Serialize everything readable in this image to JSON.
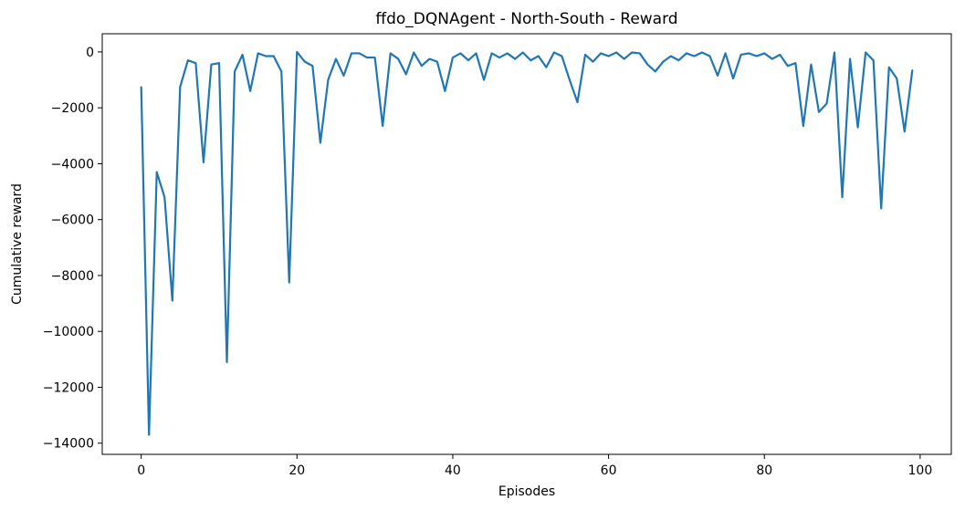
{
  "chart_data": {
    "type": "line",
    "title": "ffdo_DQNAgent - North-South - Reward",
    "xlabel": "Episodes",
    "ylabel": "Cumulative reward",
    "xlim": [
      -5,
      104
    ],
    "ylim": [
      -14400,
      650
    ],
    "xticks": [
      0,
      20,
      40,
      60,
      80,
      100
    ],
    "xtick_labels": [
      "0",
      "20",
      "40",
      "60",
      "80",
      "100"
    ],
    "yticks": [
      0,
      -2000,
      -4000,
      -6000,
      -8000,
      -10000,
      -12000,
      -14000
    ],
    "ytick_labels": [
      "0",
      "−2000",
      "−4000",
      "−6000",
      "−8000",
      "−10000",
      "−12000",
      "−14000"
    ],
    "grid": false,
    "line_color": "#1f77b4",
    "series": [
      {
        "x": [
          0,
          1,
          2,
          3,
          4,
          5,
          6,
          7,
          8,
          9,
          10,
          11,
          12,
          13,
          14,
          15,
          16,
          17,
          18,
          19,
          20,
          21,
          22,
          23,
          24,
          25,
          26,
          27,
          28,
          29,
          30,
          31,
          32,
          33,
          34,
          35,
          36,
          37,
          38,
          39,
          40,
          41,
          42,
          43,
          44,
          45,
          46,
          47,
          48,
          49,
          50,
          51,
          52,
          53,
          54,
          55,
          56,
          57,
          58,
          59,
          60,
          61,
          62,
          63,
          64,
          65,
          66,
          67,
          68,
          69,
          70,
          71,
          72,
          73,
          74,
          75,
          76,
          77,
          78,
          79,
          80,
          81,
          82,
          83,
          84,
          85,
          86,
          87,
          88,
          89,
          90,
          91,
          92,
          93,
          94,
          95,
          96,
          97,
          98,
          99
        ],
        "values": [
          -1250,
          -13700,
          -4300,
          -5200,
          -8900,
          -1250,
          -300,
          -400,
          -3950,
          -450,
          -400,
          -11100,
          -700,
          -100,
          -1400,
          -50,
          -150,
          -150,
          -700,
          -8250,
          0,
          -350,
          -500,
          -3250,
          -1000,
          -250,
          -850,
          -50,
          -50,
          -200,
          -200,
          -2650,
          -50,
          -250,
          -800,
          -20,
          -500,
          -250,
          -350,
          -1400,
          -200,
          -50,
          -300,
          -50,
          -1000,
          -50,
          -200,
          -50,
          -250,
          -20,
          -300,
          -150,
          -550,
          -20,
          -150,
          -1000,
          -1800,
          -100,
          -350,
          -50,
          -150,
          -20,
          -250,
          -20,
          -50,
          -450,
          -700,
          -350,
          -150,
          -300,
          -50,
          -150,
          -20,
          -150,
          -850,
          -50,
          -950,
          -100,
          -50,
          -150,
          -50,
          -250,
          -100,
          -500,
          -400,
          -2650,
          -450,
          -2150,
          -1850,
          -20,
          -5200,
          -250,
          -2700,
          -20,
          -300,
          -5600,
          -550,
          -950,
          -2850,
          -650
        ]
      }
    ]
  }
}
